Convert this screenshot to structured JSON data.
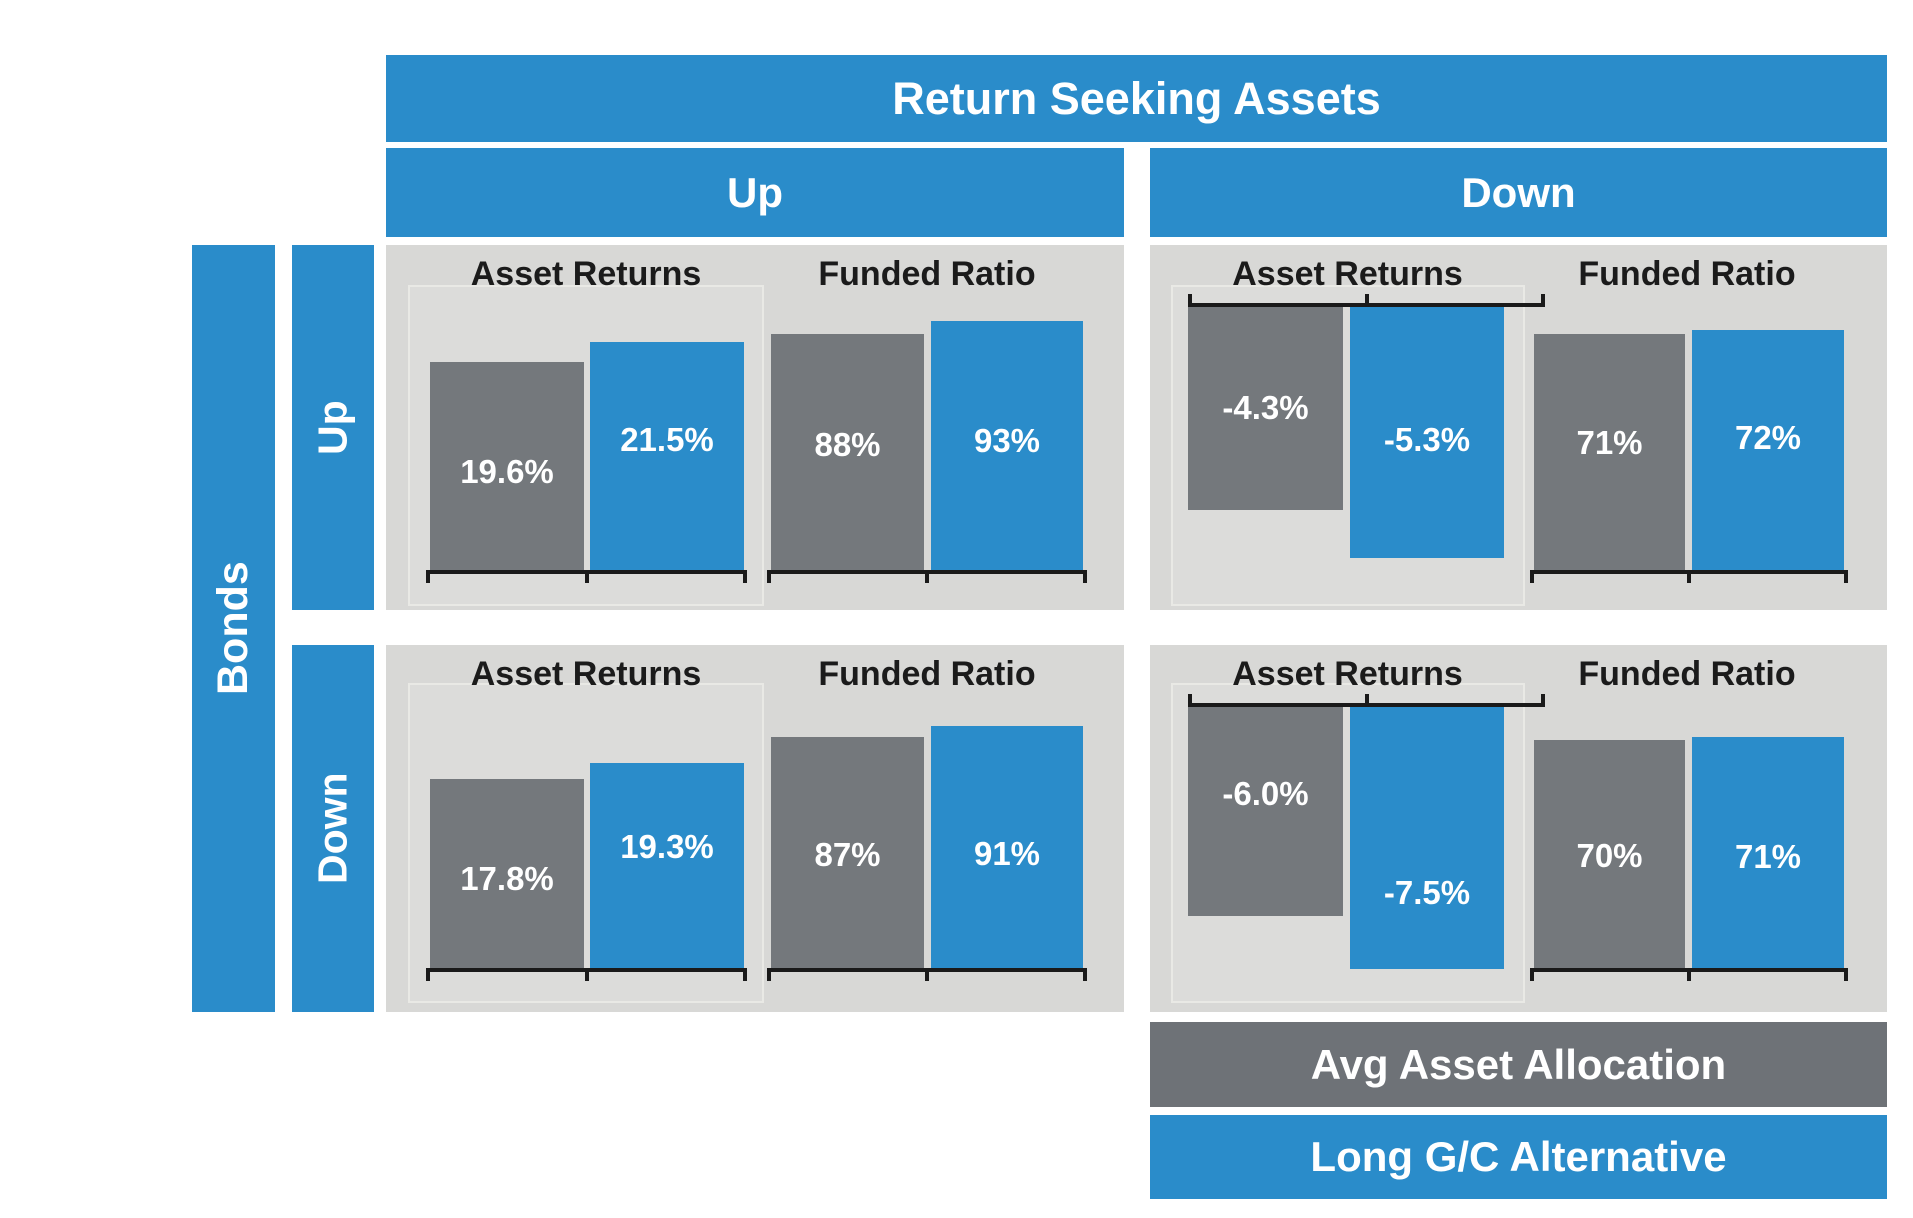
{
  "title_header": {
    "label": "Return Seeking Assets"
  },
  "column_headers": {
    "up": "Up",
    "down": "Down"
  },
  "row_headers": {
    "group": "Bonds",
    "up": "Up",
    "down": "Down"
  },
  "legend": {
    "avg": "Avg Asset Allocation",
    "alt": "Long G/C Alternative"
  },
  "colors": {
    "blue": "#2A8CCA",
    "bar_gray": "#74787C",
    "legend_gray": "#6E7277",
    "panel": "#D8D8D6",
    "axis": "#1A1A1A"
  },
  "chart_data": {
    "type": "bar",
    "orientation": "vertical",
    "series": [
      "Avg Asset Allocation",
      "Long G/C Alternative"
    ],
    "series_colors": [
      "#74787C",
      "#2A8CCA"
    ],
    "grid": false,
    "legend_position": "bottom-right",
    "quadrants": [
      {
        "bonds": "Up",
        "return_seeking": "Up",
        "charts": [
          {
            "title": "Asset Returns",
            "values": [
              19.6,
              21.5
            ],
            "labels": [
              "19.6%",
              "21.5%"
            ],
            "unit": "%",
            "baseline": 0
          },
          {
            "title": "Funded Ratio",
            "values": [
              88,
              93
            ],
            "labels": [
              "88%",
              "93%"
            ],
            "unit": "%",
            "baseline": 0
          }
        ]
      },
      {
        "bonds": "Up",
        "return_seeking": "Down",
        "charts": [
          {
            "title": "Asset Returns",
            "values": [
              -4.3,
              -5.3
            ],
            "labels": [
              "-4.3%",
              "-5.3%"
            ],
            "unit": "%",
            "baseline": 0
          },
          {
            "title": "Funded Ratio",
            "values": [
              71,
              72
            ],
            "labels": [
              "71%",
              "72%"
            ],
            "unit": "%",
            "baseline": 0
          }
        ]
      },
      {
        "bonds": "Down",
        "return_seeking": "Up",
        "charts": [
          {
            "title": "Asset Returns",
            "values": [
              17.8,
              19.3
            ],
            "labels": [
              "17.8%",
              "19.3%"
            ],
            "unit": "%",
            "baseline": 0
          },
          {
            "title": "Funded Ratio",
            "values": [
              87,
              91
            ],
            "labels": [
              "87%",
              "91%"
            ],
            "unit": "%",
            "baseline": 0
          }
        ]
      },
      {
        "bonds": "Down",
        "return_seeking": "Down",
        "charts": [
          {
            "title": "Asset Returns",
            "values": [
              -6.0,
              -7.5
            ],
            "labels": [
              "-6.0%",
              "-7.5%"
            ],
            "unit": "%",
            "baseline": 0
          },
          {
            "title": "Funded Ratio",
            "values": [
              70,
              71
            ],
            "labels": [
              "70%",
              "71%"
            ],
            "unit": "%",
            "baseline": 0
          }
        ]
      }
    ]
  }
}
